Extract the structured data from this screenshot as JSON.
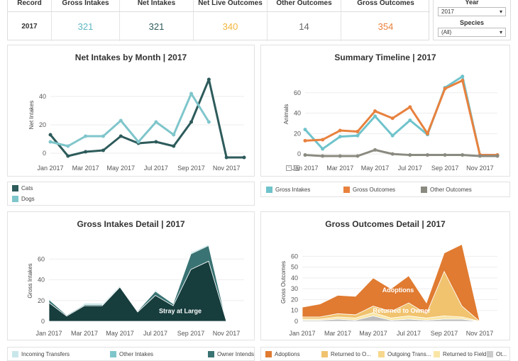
{
  "kpi": {
    "headers": [
      "Year of Record",
      "Gross Intakes",
      "Net Intakes",
      "Net Live Outcomes",
      "Other Outcomes",
      "Gross Outcomes"
    ],
    "values": [
      "2017",
      "321",
      "321",
      "340",
      "14",
      "354"
    ]
  },
  "filters": {
    "year_label": "Year",
    "year_value": "2017",
    "species_label": "Species",
    "species_value": "(All)"
  },
  "colors": {
    "cats": "#2e5b5b",
    "dogs": "#7fc6cb",
    "gross_intakes": "#6fc3cb",
    "gross_outcomes": "#e8813e",
    "other_outcomes": "#8a8a80",
    "intakes_dark": "#173d3d",
    "intakes_mid": "#3a7373",
    "adoptions": "#e07b31",
    "returned": "#f1c36f"
  },
  "chart_data": [
    {
      "type": "line",
      "title": "Net Intakes by Month | 2017",
      "ylabel": "Net Intakes",
      "xlabel": "",
      "x": [
        "Jan 2017",
        "Feb 2017",
        "Mar 2017",
        "Apr 2017",
        "May 2017",
        "Jun 2017",
        "Jul 2017",
        "Aug 2017",
        "Sep 2017",
        "Oct 2017",
        "Nov 2017",
        "Dec 2017"
      ],
      "xticks": [
        "Jan 2017",
        "Mar 2017",
        "May 2017",
        "Jul 2017",
        "Sep 2017",
        "Nov 2017"
      ],
      "yticks": [
        "0",
        "20",
        "40"
      ],
      "ylim": [
        -2,
        56
      ],
      "series": [
        {
          "name": "Cats",
          "values": [
            13,
            -2,
            1,
            2,
            12,
            7,
            8,
            5,
            22,
            52,
            -3,
            -3
          ]
        },
        {
          "name": "Dogs",
          "values": [
            8,
            5,
            12,
            12,
            23,
            8,
            22,
            13,
            42,
            22,
            null,
            null
          ]
        }
      ]
    },
    {
      "type": "line",
      "title": "Summary Timeline | 2017",
      "ylabel": "Animals",
      "xlabel": "",
      "x": [
        "Jan 2017",
        "Feb 2017",
        "Mar 2017",
        "Apr 2017",
        "May 2017",
        "Jun 2017",
        "Jul 2017",
        "Aug 2017",
        "Sep 2017",
        "Oct 2017",
        "Nov 2017",
        "Dec 2017"
      ],
      "xticks": [
        "Jan 2017",
        "Mar 2017",
        "May 2017",
        "Jul 2017",
        "Sep 2017",
        "Nov 2017"
      ],
      "yticks": [
        "0",
        "20",
        "40",
        "60"
      ],
      "ylim": [
        -2,
        80
      ],
      "series": [
        {
          "name": "Gross Intakes",
          "values": [
            24,
            5,
            17,
            18,
            37,
            18,
            33,
            19,
            65,
            76,
            -1,
            -1
          ]
        },
        {
          "name": "Gross Outcomes",
          "values": [
            13,
            14,
            23,
            22,
            42,
            35,
            46,
            20,
            64,
            72,
            -1,
            -1
          ]
        },
        {
          "name": "Other Outcomes",
          "values": [
            -1,
            -2,
            -2,
            -2,
            4,
            0,
            -1,
            -1,
            -1,
            -1,
            -2,
            -2
          ]
        }
      ]
    },
    {
      "type": "area",
      "title": "Gross Intakes Detail | 2017",
      "ylabel": "Gross Intakes",
      "xlabel": "",
      "x": [
        "Jan 2017",
        "Feb 2017",
        "Mar 2017",
        "Apr 2017",
        "May 2017",
        "Jun 2017",
        "Jul 2017",
        "Aug 2017",
        "Sep 2017",
        "Oct 2017",
        "Nov 2017",
        "Dec 2017"
      ],
      "xticks": [
        "Jan 2017",
        "Mar 2017",
        "May 2017",
        "Jul 2017",
        "Sep 2017",
        "Nov 2017"
      ],
      "yticks": [
        "0",
        "20",
        "40",
        "60"
      ],
      "ylim": [
        0,
        78
      ],
      "annotations": [
        "Stray at Large"
      ],
      "series": [
        {
          "name": "Stray at Large",
          "values": [
            18,
            5,
            15,
            15,
            33,
            9,
            25,
            15,
            50,
            58,
            0,
            0
          ]
        },
        {
          "name": "Owner Intends",
          "values": [
            3,
            1,
            1,
            1,
            1,
            1,
            4,
            2,
            15,
            15,
            0,
            0
          ]
        },
        {
          "name": "Other Intakes",
          "values": [
            1,
            0,
            1,
            1,
            1,
            0,
            1,
            0,
            1,
            1,
            0,
            0
          ]
        },
        {
          "name": "Incoming Transfers",
          "values": [
            1,
            0,
            0,
            0,
            0,
            0,
            1,
            0,
            1,
            0,
            0,
            0
          ]
        }
      ]
    },
    {
      "type": "area",
      "title": "Gross Outcomes Detail | 2017",
      "ylabel": "Gross Outcomes",
      "xlabel": "",
      "x": [
        "Jan 2017",
        "Feb 2017",
        "Mar 2017",
        "Apr 2017",
        "May 2017",
        "Jun 2017",
        "Jul 2017",
        "Aug 2017",
        "Sep 2017",
        "Oct 2017",
        "Nov 2017",
        "Dec 2017"
      ],
      "xticks": [
        "Jan 2017",
        "Mar 2017",
        "May 2017",
        "Jul 2017",
        "Sep 2017",
        "Nov 2017"
      ],
      "yticks": [
        "0",
        "10",
        "20",
        "30",
        "40",
        "50",
        "60"
      ],
      "ylim": [
        0,
        72
      ],
      "annotations": [
        "Adoptions",
        "Returned to Owner"
      ],
      "series": [
        {
          "name": "Outgoing Trans",
          "values": [
            1,
            1,
            2,
            1,
            5,
            1,
            2,
            1,
            2,
            2,
            0,
            0
          ]
        },
        {
          "name": "Returned to Field",
          "values": [
            1,
            1,
            2,
            2,
            3,
            2,
            3,
            2,
            3,
            2,
            0,
            0
          ]
        },
        {
          "name": "Returned to Owner",
          "values": [
            2,
            2,
            3,
            3,
            6,
            6,
            12,
            4,
            41,
            10,
            0,
            0
          ]
        },
        {
          "name": "Adoptions",
          "values": [
            9,
            12,
            17,
            17,
            26,
            21,
            25,
            10,
            17,
            57,
            0,
            0
          ]
        }
      ]
    }
  ],
  "legends": {
    "net": [
      "Cats",
      "Dogs"
    ],
    "summary": [
      "Gross Intakes",
      "Gross Outcomes",
      "Other Outcomes"
    ],
    "intakes": [
      "Incoming Transfers",
      "Other Intakes",
      "Owner Intends"
    ],
    "outcomes": [
      "Adoptions",
      "Returned to O...",
      "Outgoing Trans...",
      "Returned to Field",
      "Ot..."
    ]
  }
}
